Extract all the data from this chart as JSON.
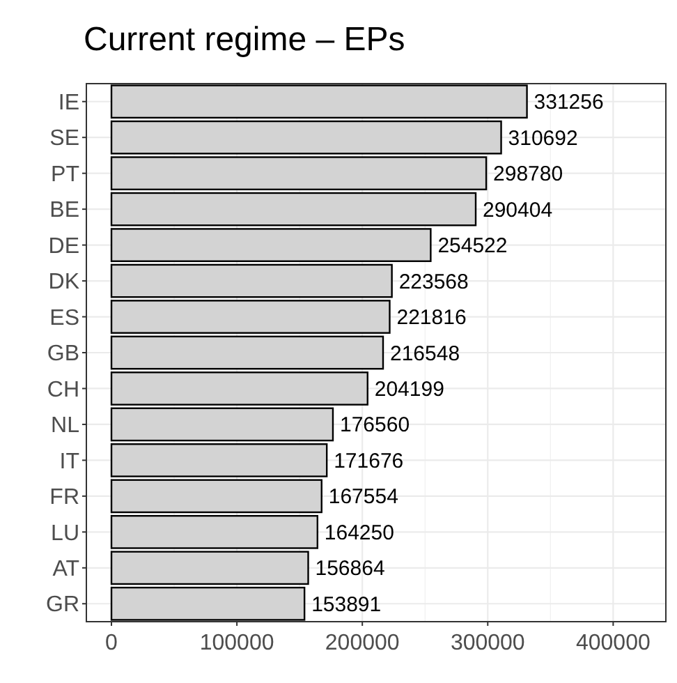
{
  "chart_data": {
    "type": "bar",
    "orientation": "horizontal",
    "title": "Current regime – EPs",
    "categories": [
      "IE",
      "SE",
      "PT",
      "BE",
      "DE",
      "DK",
      "ES",
      "GB",
      "CH",
      "NL",
      "IT",
      "FR",
      "LU",
      "AT",
      "GR"
    ],
    "values": [
      331256,
      310692,
      298780,
      290404,
      254522,
      223568,
      221816,
      216548,
      204199,
      176560,
      171676,
      167554,
      164250,
      156864,
      153891
    ],
    "color": "#d3d3d3",
    "xlim": [
      -20000,
      442000
    ],
    "xticks": [
      0,
      100000,
      200000,
      300000,
      400000
    ],
    "grid": true,
    "data_labels": true
  }
}
